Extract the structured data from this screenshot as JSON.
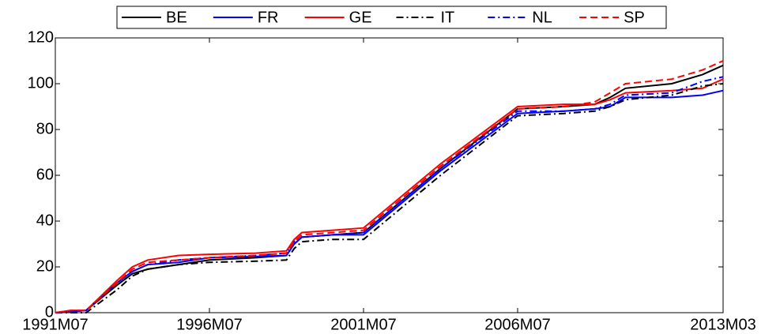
{
  "chart_data": {
    "type": "line",
    "x": [
      "1991M07",
      "1992M01",
      "1992M07",
      "1993M07",
      "1994M01",
      "1994M07",
      "1995M07",
      "1996M07",
      "1998M01",
      "1999M01",
      "1999M04",
      "1999M07",
      "2000M07",
      "2001M07",
      "2004M01",
      "2006M07",
      "2008M01",
      "2009M01",
      "2009M07",
      "2010M01",
      "2011M07",
      "2012M07",
      "2013M03"
    ],
    "series": [
      {
        "name": "BE",
        "color": "#000000",
        "dash": "solid",
        "values": [
          0,
          0.5,
          1,
          12,
          17,
          19,
          21,
          23,
          24,
          25,
          30,
          33,
          34,
          35,
          63,
          89,
          90,
          91,
          94,
          98,
          100,
          104,
          108
        ]
      },
      {
        "name": "FR",
        "color": "#0000ff",
        "dash": "solid",
        "values": [
          0,
          0.5,
          1,
          13,
          18,
          21,
          22,
          24,
          24.5,
          25,
          30,
          33,
          34,
          34,
          62,
          87,
          88,
          89,
          90,
          94,
          94,
          95,
          97
        ]
      },
      {
        "name": "GE",
        "color": "#ff0000",
        "dash": "solid",
        "values": [
          0,
          1,
          1,
          14,
          20,
          23,
          25,
          25.5,
          26,
          27,
          32,
          35,
          36,
          37,
          65,
          90,
          91,
          91,
          93,
          96,
          97,
          98,
          102
        ]
      },
      {
        "name": "IT",
        "color": "#000000",
        "dash": "dashdot",
        "values": [
          0,
          0,
          0,
          10,
          16,
          19,
          21,
          22,
          22.5,
          23,
          28,
          31,
          32,
          32,
          60,
          86,
          87,
          88,
          90,
          93,
          95,
          99,
          100
        ]
      },
      {
        "name": "NL",
        "color": "#0000ff",
        "dash": "dashdot",
        "values": [
          0,
          0.5,
          1,
          13,
          18,
          21,
          23,
          24,
          25,
          26,
          31,
          33,
          34,
          35,
          63,
          88,
          88,
          89,
          91,
          95,
          96,
          101,
          103
        ]
      },
      {
        "name": "SP",
        "color": "#ff0000",
        "dash": "dashed",
        "values": [
          0,
          1,
          1,
          13,
          19,
          22,
          23,
          24,
          25,
          26,
          31,
          34,
          35,
          36,
          64,
          89,
          90,
          92,
          96,
          100,
          102,
          106,
          110
        ]
      }
    ],
    "xlim": [
      "1991M07",
      "2013M03"
    ],
    "xticks": [
      "1991M07",
      "1996M07",
      "2001M07",
      "2006M07",
      "2013M03"
    ],
    "ylim": [
      0,
      120
    ],
    "yticks": [
      0,
      20,
      40,
      60,
      80,
      100,
      120
    ],
    "legend": "top"
  }
}
